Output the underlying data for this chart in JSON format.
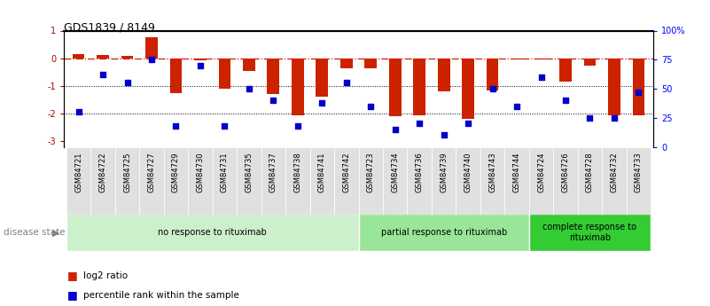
{
  "title": "GDS1839 / 8149",
  "samples": [
    "GSM84721",
    "GSM84722",
    "GSM84725",
    "GSM84727",
    "GSM84729",
    "GSM84730",
    "GSM84731",
    "GSM84735",
    "GSM84737",
    "GSM84738",
    "GSM84741",
    "GSM84742",
    "GSM84723",
    "GSM84734",
    "GSM84736",
    "GSM84739",
    "GSM84740",
    "GSM84743",
    "GSM84744",
    "GSM84724",
    "GSM84726",
    "GSM84728",
    "GSM84732",
    "GSM84733"
  ],
  "log2_ratio": [
    0.15,
    0.12,
    0.08,
    0.75,
    -1.25,
    -0.08,
    -1.1,
    -0.45,
    -1.3,
    -2.05,
    -1.4,
    -0.35,
    -0.35,
    -2.1,
    -2.05,
    -1.2,
    -2.2,
    -1.15,
    -0.05,
    -0.05,
    -0.85,
    -0.25,
    -2.05,
    -2.05
  ],
  "percentile_rank": [
    30,
    62,
    55,
    75,
    18,
    70,
    18,
    50,
    40,
    18,
    38,
    55,
    35,
    15,
    20,
    10,
    20,
    50,
    35,
    60,
    40,
    25,
    25,
    47
  ],
  "group_labels": [
    "no response to rituximab",
    "partial response to rituximab",
    "complete response to\nrituximab"
  ],
  "group_boundaries": [
    0,
    12,
    19,
    24
  ],
  "group_colors": [
    "#ccf0cc",
    "#99e699",
    "#33cc33"
  ],
  "bar_color": "#cc2200",
  "dot_color": "#0000cc",
  "ylim_left": [
    -3.2,
    1.0
  ],
  "yticks_left": [
    1,
    0,
    -1,
    -2,
    -3
  ],
  "yticks_right": [
    100,
    75,
    50,
    25,
    0
  ],
  "ytick_labels_left": [
    "1",
    "0",
    "-1",
    "-2",
    "-3"
  ],
  "ytick_labels_right": [
    "100%",
    "75",
    "50",
    "25",
    "0"
  ],
  "xlabel_bg": "#d0d0d0"
}
